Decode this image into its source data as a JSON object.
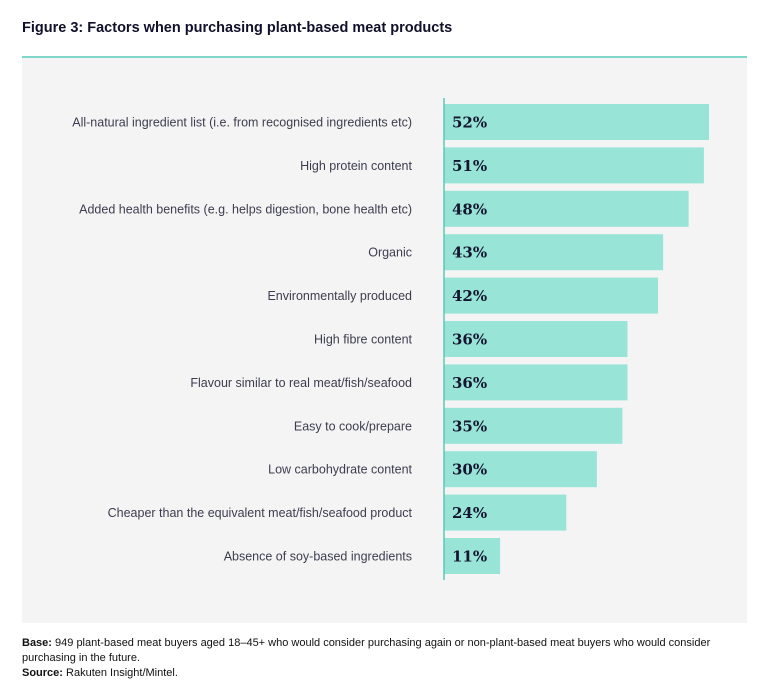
{
  "header": {
    "title": "Figure 3: Factors when purchasing plant-based meat products"
  },
  "chart_data": {
    "type": "bar",
    "orientation": "horizontal",
    "categories": [
      "All-natural ingredient list (i.e. from recognised ingredients etc)",
      "High protein content",
      "Added health benefits (e.g. helps digestion, bone health etc)",
      "Organic",
      "Environmentally produced",
      "High fibre content",
      "Flavour similar to real meat/fish/seafood",
      "Easy to cook/prepare",
      "Low carbohydrate content",
      "Cheaper than the equivalent meat/fish/seafood product",
      "Absence of soy-based ingredients"
    ],
    "values": [
      52,
      51,
      48,
      43,
      42,
      36,
      36,
      35,
      30,
      24,
      11
    ],
    "data_labels": [
      "52%",
      "51%",
      "48%",
      "43%",
      "42%",
      "36%",
      "36%",
      "35%",
      "30%",
      "24%",
      "11%"
    ],
    "unit": "%",
    "title": "Figure 3: Factors when purchasing plant-based meat products",
    "xlabel": "",
    "ylabel": "",
    "xlim": [
      0,
      52
    ],
    "grid": false,
    "legend": "none",
    "colors": {
      "bar": "#98e5d8",
      "axis": "#5fc7b7",
      "panel": "#f4f4f4"
    }
  },
  "footer": {
    "base_label": "Base:",
    "base_text": "949 plant-based meat buyers aged 18–45+ who would consider purchasing again or non-plant-based meat buyers who would consider purchasing in the future.",
    "source_label": "Source:",
    "source_text": "Rakuten Insight/Mintel."
  }
}
